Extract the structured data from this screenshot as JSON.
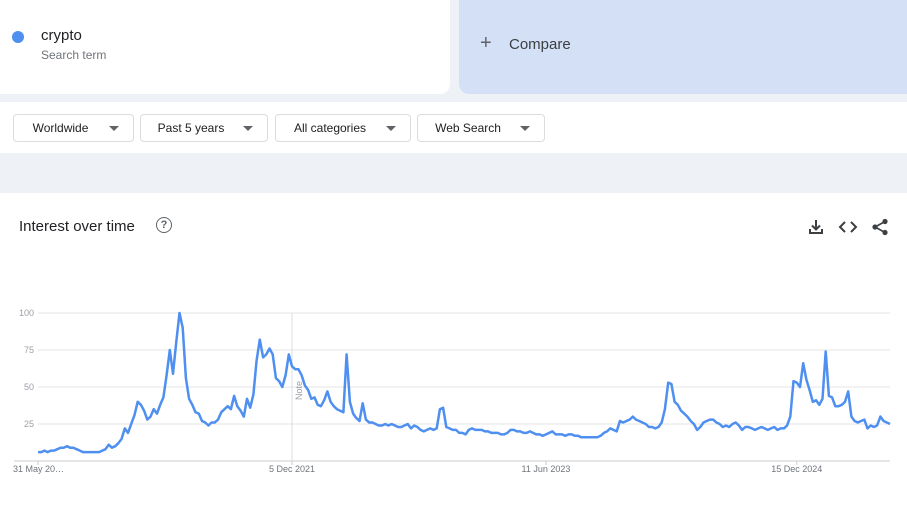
{
  "search_term": {
    "name": "crypto",
    "subtitle": "Search term",
    "color": "#4e8ff0"
  },
  "compare": {
    "label": "Compare"
  },
  "filters": {
    "region": "Worldwide",
    "time_range": "Past 5 years",
    "category": "All categories",
    "search_type": "Web Search"
  },
  "panel": {
    "title": "Interest over time",
    "icons": [
      "help-icon",
      "download-icon",
      "embed-icon",
      "share-icon"
    ]
  },
  "chart_data": {
    "type": "line",
    "title": "",
    "xlabel": "",
    "ylabel": "",
    "ylim": [
      0,
      100
    ],
    "y_ticks": [
      25,
      50,
      75,
      100
    ],
    "x_tick_labels": [
      "31 May 20…",
      "5 Dec 2021",
      "11 Jun 2023",
      "15 Dec 2024"
    ],
    "x_tick_indices": [
      0,
      79,
      158,
      236
    ],
    "annotation": {
      "label": "Note",
      "index": 79
    },
    "grid": true,
    "line_color": "#4e8ff0",
    "series": [
      {
        "values": [
          6,
          6,
          7,
          6,
          7,
          7,
          8,
          9,
          9,
          10,
          9,
          9,
          8,
          7,
          6,
          6,
          6,
          6,
          6,
          6,
          7,
          8,
          11,
          9,
          10,
          12,
          15,
          22,
          19,
          25,
          31,
          40,
          38,
          34,
          28,
          30,
          35,
          32,
          38,
          43,
          58,
          75,
          59,
          80,
          100,
          90,
          56,
          42,
          38,
          33,
          32,
          27,
          26,
          24,
          26,
          26,
          28,
          33,
          35,
          37,
          35,
          44,
          37,
          34,
          30,
          42,
          36,
          45,
          68,
          82,
          70,
          72,
          76,
          72,
          56,
          54,
          50,
          58,
          72,
          64,
          62,
          62,
          58,
          51,
          48,
          42,
          43,
          38,
          37,
          41,
          47,
          40,
          37,
          35,
          34,
          33,
          72,
          40,
          32,
          29,
          27,
          39,
          28,
          26,
          26,
          25,
          24,
          24,
          25,
          24,
          25,
          24,
          23,
          23,
          24,
          25,
          22,
          24,
          23,
          21,
          20,
          21,
          22,
          21,
          22,
          35,
          36,
          23,
          22,
          21,
          21,
          19,
          19,
          18,
          21,
          22,
          21,
          21,
          21,
          20,
          20,
          19,
          19,
          19,
          18,
          18,
          19,
          21,
          21,
          20,
          20,
          19,
          19,
          20,
          19,
          18,
          18,
          17,
          18,
          19,
          20,
          18,
          18,
          18,
          17,
          18,
          18,
          17,
          17,
          16,
          16,
          16,
          16,
          16,
          16,
          17,
          19,
          20,
          22,
          21,
          20,
          27,
          26,
          27,
          28,
          30,
          28,
          27,
          26,
          25,
          23,
          23,
          22,
          23,
          26,
          35,
          53,
          52,
          40,
          38,
          34,
          32,
          30,
          27,
          25,
          21,
          23,
          26,
          27,
          28,
          28,
          26,
          25,
          23,
          24,
          23,
          25,
          26,
          24,
          21,
          23,
          23,
          22,
          21,
          22,
          23,
          22,
          21,
          22,
          23,
          21,
          22,
          22,
          24,
          30,
          54,
          53,
          50,
          66,
          55,
          48,
          40,
          41,
          38,
          42,
          74,
          44,
          43,
          37,
          37,
          38,
          40,
          47,
          30,
          27,
          26,
          27,
          28,
          22,
          24,
          23,
          24,
          30,
          27,
          26,
          25
        ]
      }
    ]
  }
}
